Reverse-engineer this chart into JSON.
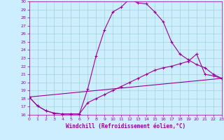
{
  "xlabel": "Windchill (Refroidissement éolien,°C)",
  "line_color": "#990099",
  "bg_color": "#cceeff",
  "grid_color": "#99cccc",
  "xmin": 0,
  "xmax": 23,
  "ymin": 16,
  "ymax": 30,
  "series1_x": [
    0,
    1,
    2,
    3,
    4,
    5,
    6,
    7,
    8,
    9,
    10,
    11,
    12,
    13,
    14,
    15,
    16,
    17,
    18,
    19,
    20,
    21,
    22,
    23
  ],
  "series1_y": [
    18.2,
    17.1,
    16.5,
    16.2,
    16.1,
    16.1,
    16.1,
    19.2,
    23.3,
    26.5,
    28.7,
    29.3,
    30.3,
    29.8,
    29.7,
    28.7,
    27.5,
    25.0,
    23.5,
    22.8,
    22.2,
    21.8,
    21.0,
    20.5
  ],
  "series2_x": [
    0,
    1,
    2,
    3,
    4,
    5,
    6,
    7,
    8,
    9,
    10,
    11,
    12,
    13,
    14,
    15,
    16,
    17,
    18,
    19,
    20,
    21,
    22,
    23
  ],
  "series2_y": [
    18.2,
    17.1,
    16.5,
    16.2,
    16.1,
    16.1,
    16.1,
    17.5,
    18.0,
    18.5,
    19.0,
    19.5,
    20.0,
    20.5,
    21.0,
    21.5,
    21.8,
    22.0,
    22.3,
    22.6,
    23.5,
    21.0,
    20.8,
    20.5
  ],
  "series3_x": [
    0,
    23
  ],
  "series3_y": [
    18.2,
    20.5
  ],
  "marker": "+",
  "markersize": 3,
  "linewidth": 0.8
}
